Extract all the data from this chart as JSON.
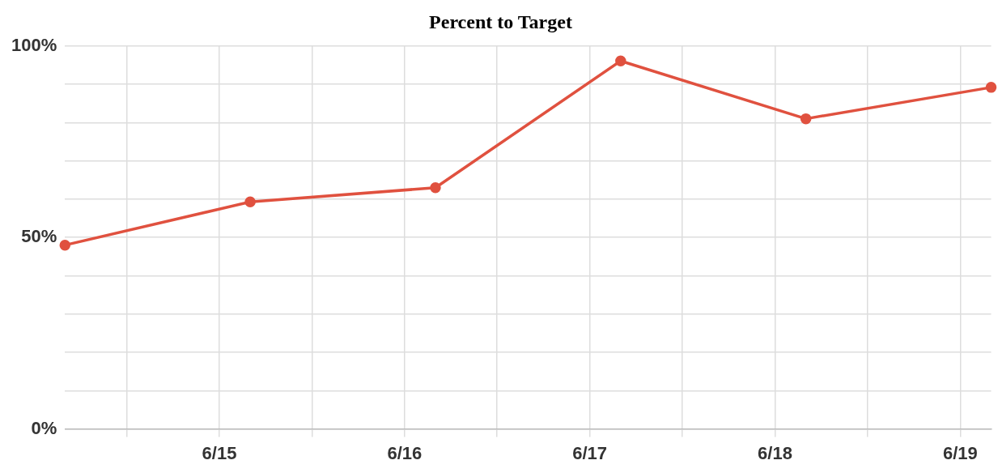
{
  "chart_data": {
    "type": "line",
    "title": "Percent to Target",
    "x": [
      "--06-14T04:00",
      "--06-15T04:00",
      "--06-16T04:00",
      "--06-17T04:00",
      "--06-18T04:00",
      "--06-19T04:00"
    ],
    "series": [
      {
        "color": "#e0513f",
        "values": [
          48,
          59.3,
          63,
          96.1,
          81,
          89.2
        ]
      }
    ],
    "xlim": [
      "--06-14T04:00",
      "--06-19T04:00"
    ],
    "xticks": [
      {
        "value": "--06-14T12:00",
        "label": null
      },
      {
        "value": "--06-15",
        "label": "6/15"
      },
      {
        "value": "--06-15T12:00",
        "label": null
      },
      {
        "value": "--06-16",
        "label": "6/16"
      },
      {
        "value": "--06-16T12:00",
        "label": null
      },
      {
        "value": "--06-17",
        "label": "6/17"
      },
      {
        "value": "--06-17T12:00",
        "label": null
      },
      {
        "value": "--06-18",
        "label": "6/18"
      },
      {
        "value": "--06-18T12:00",
        "label": null
      },
      {
        "value": "--06-19",
        "label": "6/19"
      }
    ],
    "ylim": [
      0,
      100
    ],
    "yticks": [
      {
        "value": 0,
        "label": "0%"
      },
      {
        "value": 10,
        "label": null
      },
      {
        "value": 20,
        "label": null
      },
      {
        "value": 30,
        "label": null
      },
      {
        "value": 40,
        "label": null
      },
      {
        "value": 50,
        "label": "50%"
      },
      {
        "value": 60,
        "label": null
      },
      {
        "value": 70,
        "label": null
      },
      {
        "value": 80,
        "label": null
      },
      {
        "value": 90,
        "label": null
      },
      {
        "value": 100,
        "label": "100%"
      }
    ],
    "grid": true,
    "legend": false,
    "marker": "circle",
    "line_style": "solid"
  }
}
